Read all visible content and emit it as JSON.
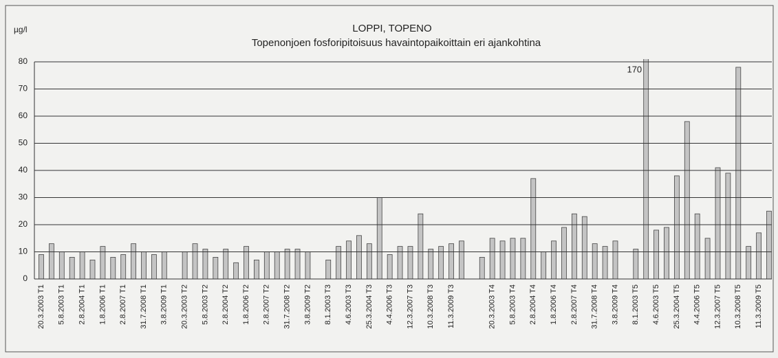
{
  "chart_data": {
    "type": "bar",
    "title": "LOPPI, TOPENO",
    "subtitle": "Topenonjoen fosforipitoisuus havaintopaikoittain eri ajankohtina",
    "y_label": "µg/l",
    "categories": [
      "20.3.2003 T1",
      null,
      "5.8.2003 T1",
      null,
      "2.8.2004 T1",
      null,
      "1.8.2006 T1",
      null,
      "2.8.2007 T1",
      null,
      "31.7.2008 T1",
      null,
      "3.8.2009 T1",
      null,
      "20.3.2003 T2",
      null,
      "5.8.2003 T2",
      null,
      "2.8.2004 T2",
      null,
      "1.8.2006 T2",
      null,
      "2.8.2007 T2",
      null,
      "31.7.2008 T2",
      null,
      "3.8.2009 T2",
      null,
      "8.1.2003 T3",
      null,
      "4.6.2003 T3",
      null,
      "25.3.2004 T3",
      null,
      "4.4.2006 T3",
      null,
      "12.3.2007 T3",
      null,
      "10.3.2008 T3",
      null,
      "11.3.2009 T3",
      null,
      null,
      null,
      "20.3.2003 T4",
      null,
      "5.8.2003 T4",
      null,
      "2.8.2004 T4",
      null,
      "1.8.2006 T4",
      null,
      "2.8.2007 T4",
      null,
      "31.7.2008 T4",
      null,
      "3.8.2009 T4",
      null,
      "8.1.2003 T5",
      null,
      "4.6.2003 T5",
      null,
      "25.3.2004 T5",
      null,
      "4.4.2006 T5",
      null,
      "12.3.2007 T5",
      null,
      "10.3.2008 T5",
      null,
      "11.3.2009 T5",
      null
    ],
    "values": [
      9,
      13,
      10,
      8,
      10,
      7,
      12,
      8,
      9,
      13,
      10,
      9,
      10,
      null,
      10,
      13,
      11,
      8,
      11,
      6,
      12,
      7,
      10,
      10,
      11,
      11,
      10,
      null,
      7,
      12,
      14,
      16,
      13,
      30,
      9,
      12,
      12,
      24,
      11,
      12,
      13,
      14,
      null,
      8,
      15,
      14,
      15,
      15,
      37,
      10,
      14,
      19,
      24,
      23,
      13,
      12,
      14,
      null,
      11,
      170,
      18,
      19,
      38,
      58,
      24,
      15,
      41,
      39,
      78,
      12,
      17,
      25
    ],
    "value_labels": [
      null,
      null,
      null,
      null,
      null,
      null,
      null,
      null,
      null,
      null,
      null,
      null,
      null,
      null,
      null,
      null,
      null,
      null,
      null,
      null,
      null,
      null,
      null,
      null,
      null,
      null,
      null,
      null,
      null,
      null,
      null,
      null,
      null,
      null,
      null,
      null,
      null,
      null,
      null,
      null,
      null,
      null,
      null,
      null,
      null,
      null,
      null,
      null,
      null,
      null,
      null,
      null,
      null,
      null,
      null,
      null,
      null,
      null,
      null,
      "170",
      null,
      null,
      null,
      null,
      null,
      null,
      null,
      null,
      null,
      null,
      null,
      null
    ],
    "color": "#c4c4c4",
    "ylim": [
      0,
      80
    ],
    "yticks": [
      0,
      10,
      20,
      30,
      40,
      50,
      60,
      70,
      80
    ],
    "grid": true
  }
}
